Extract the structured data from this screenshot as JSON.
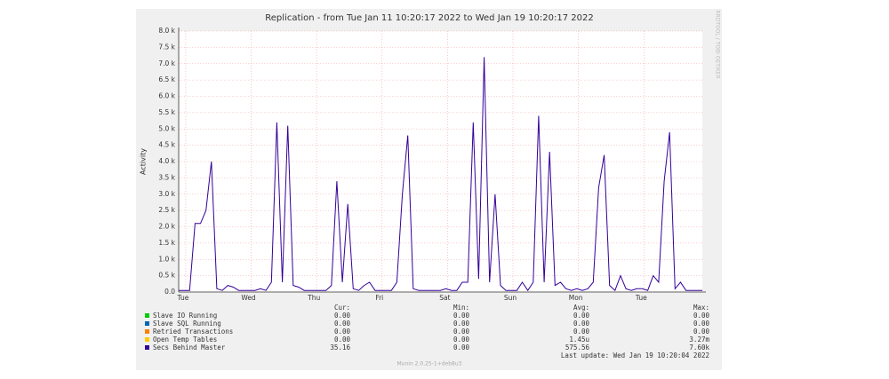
{
  "chart_data": {
    "type": "line",
    "title": "Replication - from Tue Jan 11 10:20:17 2022 to Wed Jan 19 10:20:17 2022",
    "y_label": "Activity",
    "side_text": "RRDTOOL / TOBI OETIKER",
    "ylim": [
      0,
      8000
    ],
    "yticks": [
      {
        "value": 0,
        "label": "0.0"
      },
      {
        "value": 500,
        "label": "0.5 k"
      },
      {
        "value": 1000,
        "label": "1.0 k"
      },
      {
        "value": 1500,
        "label": "1.5 k"
      },
      {
        "value": 2000,
        "label": "2.0 k"
      },
      {
        "value": 2500,
        "label": "2.5 k"
      },
      {
        "value": 3000,
        "label": "3.0 k"
      },
      {
        "value": 3500,
        "label": "3.5 k"
      },
      {
        "value": 4000,
        "label": "4.0 k"
      },
      {
        "value": 4500,
        "label": "4.5 k"
      },
      {
        "value": 5000,
        "label": "5.0 k"
      },
      {
        "value": 5500,
        "label": "5.5 k"
      },
      {
        "value": 6000,
        "label": "6.0 k"
      },
      {
        "value": 6500,
        "label": "6.5 k"
      },
      {
        "value": 7000,
        "label": "7.0 k"
      },
      {
        "value": 7500,
        "label": "7.5 k"
      },
      {
        "value": 8000,
        "label": "8.0 k"
      }
    ],
    "xlim": [
      0,
      96
    ],
    "xticks": [
      {
        "value": 0.8,
        "label": "Tue"
      },
      {
        "value": 12.8,
        "label": "Wed"
      },
      {
        "value": 24.8,
        "label": "Thu"
      },
      {
        "value": 36.8,
        "label": "Fri"
      },
      {
        "value": 48.8,
        "label": "Sat"
      },
      {
        "value": 60.8,
        "label": "Sun"
      },
      {
        "value": 72.8,
        "label": "Mon"
      },
      {
        "value": 84.8,
        "label": "Tue"
      }
    ],
    "grid": true,
    "stat_headers": [
      "Cur:",
      "Min:",
      "Avg:",
      "Max:"
    ],
    "series": [
      {
        "name": "Slave IO Running",
        "color": "#00cc00",
        "stats": [
          "0.00",
          "0.00",
          "0.00",
          "0.00"
        ]
      },
      {
        "name": "Slave SQL Running",
        "color": "#0066b3",
        "stats": [
          "0.00",
          "0.00",
          "0.00",
          "0.00"
        ]
      },
      {
        "name": "Retried Transactions",
        "color": "#ff8000",
        "stats": [
          "0.00",
          "0.00",
          "0.00",
          "0.00"
        ]
      },
      {
        "name": "Open Temp Tables",
        "color": "#ffcc00",
        "stats": [
          "0.00",
          "0.00",
          "1.45u",
          "3.27m"
        ]
      },
      {
        "name": "Secs Behind Master",
        "color": "#330099",
        "stats": [
          "35.16",
          "0.00",
          "575.56",
          "7.60k"
        ],
        "values": [
          50,
          50,
          50,
          2100,
          2100,
          2500,
          4000,
          100,
          50,
          200,
          150,
          50,
          50,
          50,
          50,
          100,
          50,
          300,
          5200,
          300,
          5100,
          200,
          150,
          50,
          50,
          50,
          50,
          50,
          200,
          3400,
          300,
          2700,
          100,
          50,
          200,
          300,
          50,
          50,
          50,
          50,
          300,
          3000,
          4800,
          100,
          50,
          50,
          50,
          50,
          50,
          100,
          50,
          50,
          300,
          300,
          5200,
          400,
          7200,
          300,
          3000,
          200,
          50,
          50,
          50,
          300,
          50,
          300,
          5400,
          300,
          4300,
          200,
          300,
          100,
          50,
          100,
          50,
          100,
          300,
          3200,
          4200,
          200,
          50,
          500,
          100,
          50,
          100,
          100,
          50,
          500,
          300,
          3400,
          4900,
          100,
          300,
          50,
          50,
          50,
          50
        ]
      }
    ],
    "last_update": "Last update: Wed Jan 19 10:20:04 2022",
    "footer": "Munin 2.0.25-1+deb8u3"
  }
}
